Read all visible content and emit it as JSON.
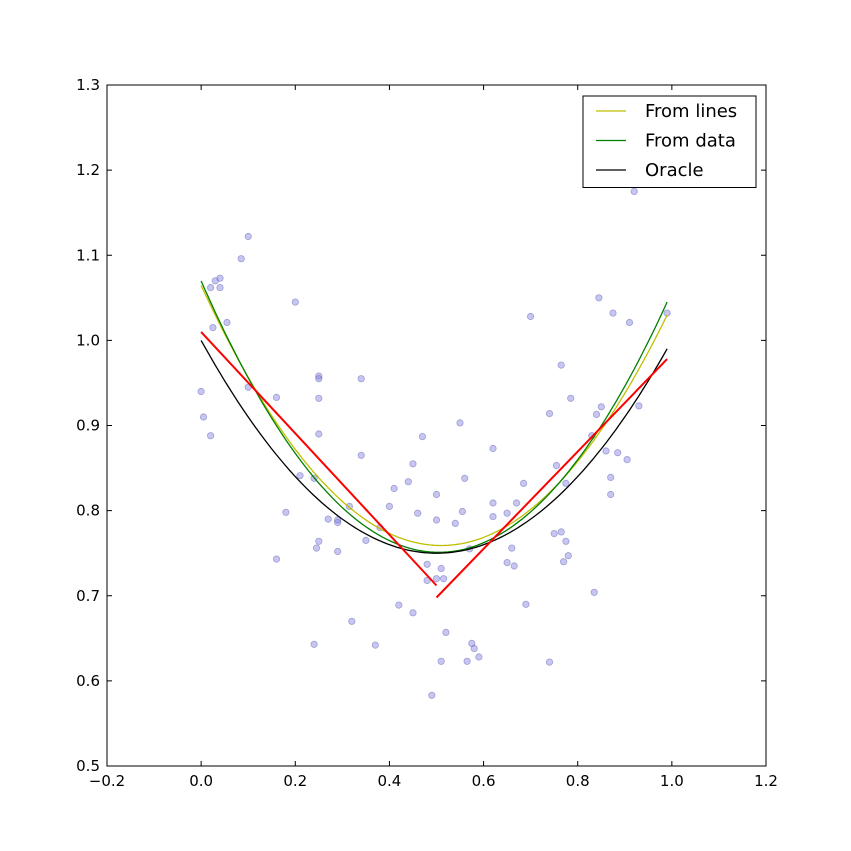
{
  "chart_data": {
    "type": "scatter",
    "xlim": [
      -0.2,
      1.2
    ],
    "ylim": [
      0.5,
      1.3
    ],
    "xticks": [
      "−0.2",
      "0.0",
      "0.2",
      "0.4",
      "0.6",
      "0.8",
      "1.0",
      "1.2"
    ],
    "yticks": [
      "0.5",
      "0.6",
      "0.7",
      "0.8",
      "0.9",
      "1.0",
      "1.1",
      "1.2",
      "1.3"
    ],
    "grid": false,
    "legend": {
      "position": "top-right",
      "entries": [
        {
          "label": "From lines",
          "color": "#bfbf00"
        },
        {
          "label": "From data",
          "color": "#008000"
        },
        {
          "label": "Oracle",
          "color": "#000000"
        }
      ]
    },
    "scatter": {
      "color": "#8080e0",
      "points": [
        [
          0.0,
          0.94
        ],
        [
          0.005,
          0.91
        ],
        [
          0.02,
          0.888
        ],
        [
          0.02,
          1.062
        ],
        [
          0.025,
          1.015
        ],
        [
          0.03,
          1.07
        ],
        [
          0.04,
          1.073
        ],
        [
          0.04,
          1.062
        ],
        [
          0.055,
          1.021
        ],
        [
          0.085,
          1.096
        ],
        [
          0.1,
          1.122
        ],
        [
          0.1,
          0.945
        ],
        [
          0.16,
          0.743
        ],
        [
          0.16,
          0.933
        ],
        [
          0.18,
          0.798
        ],
        [
          0.2,
          1.045
        ],
        [
          0.21,
          0.841
        ],
        [
          0.24,
          0.838
        ],
        [
          0.24,
          0.643
        ],
        [
          0.245,
          0.756
        ],
        [
          0.25,
          0.958
        ],
        [
          0.25,
          0.955
        ],
        [
          0.25,
          0.932
        ],
        [
          0.25,
          0.89
        ],
        [
          0.25,
          0.764
        ],
        [
          0.27,
          0.79
        ],
        [
          0.29,
          0.752
        ],
        [
          0.29,
          0.786
        ],
        [
          0.29,
          0.789
        ],
        [
          0.315,
          0.805
        ],
        [
          0.32,
          0.67
        ],
        [
          0.34,
          0.955
        ],
        [
          0.34,
          0.865
        ],
        [
          0.35,
          0.765
        ],
        [
          0.37,
          0.642
        ],
        [
          0.38,
          0.78
        ],
        [
          0.4,
          0.805
        ],
        [
          0.41,
          0.826
        ],
        [
          0.42,
          0.689
        ],
        [
          0.44,
          0.834
        ],
        [
          0.45,
          0.855
        ],
        [
          0.45,
          0.68
        ],
        [
          0.46,
          0.797
        ],
        [
          0.47,
          0.887
        ],
        [
          0.48,
          0.737
        ],
        [
          0.48,
          0.718
        ],
        [
          0.49,
          0.583
        ],
        [
          0.5,
          0.789
        ],
        [
          0.5,
          0.819
        ],
        [
          0.5,
          0.72
        ],
        [
          0.51,
          0.732
        ],
        [
          0.51,
          0.623
        ],
        [
          0.515,
          0.72
        ],
        [
          0.52,
          0.657
        ],
        [
          0.54,
          0.785
        ],
        [
          0.55,
          0.903
        ],
        [
          0.555,
          0.799
        ],
        [
          0.56,
          0.838
        ],
        [
          0.565,
          0.623
        ],
        [
          0.57,
          0.755
        ],
        [
          0.575,
          0.644
        ],
        [
          0.58,
          0.638
        ],
        [
          0.59,
          0.628
        ],
        [
          0.62,
          0.873
        ],
        [
          0.62,
          0.809
        ],
        [
          0.62,
          0.793
        ],
        [
          0.65,
          0.797
        ],
        [
          0.65,
          0.739
        ],
        [
          0.66,
          0.756
        ],
        [
          0.665,
          0.735
        ],
        [
          0.67,
          0.809
        ],
        [
          0.685,
          0.832
        ],
        [
          0.69,
          0.69
        ],
        [
          0.7,
          1.028
        ],
        [
          0.74,
          0.914
        ],
        [
          0.74,
          0.622
        ],
        [
          0.75,
          0.773
        ],
        [
          0.755,
          0.853
        ],
        [
          0.765,
          0.971
        ],
        [
          0.765,
          0.775
        ],
        [
          0.77,
          0.74
        ],
        [
          0.775,
          0.764
        ],
        [
          0.775,
          0.832
        ],
        [
          0.78,
          0.747
        ],
        [
          0.785,
          0.932
        ],
        [
          0.83,
          0.888
        ],
        [
          0.835,
          0.704
        ],
        [
          0.84,
          0.913
        ],
        [
          0.845,
          1.05
        ],
        [
          0.85,
          0.922
        ],
        [
          0.86,
          0.87
        ],
        [
          0.87,
          0.839
        ],
        [
          0.87,
          0.819
        ],
        [
          0.875,
          1.032
        ],
        [
          0.885,
          0.868
        ],
        [
          0.905,
          0.86
        ],
        [
          0.91,
          1.021
        ],
        [
          0.92,
          1.175
        ],
        [
          0.93,
          0.923
        ],
        [
          0.99,
          1.032
        ]
      ]
    },
    "series": [
      {
        "name": "From lines",
        "color": "#bfbf00",
        "kind": "quadratic",
        "a": 1.175,
        "vertex_x": 0.51,
        "vertex_y": 0.759,
        "x_range": [
          0.0,
          0.99
        ]
      },
      {
        "name": "From data",
        "color": "#008000",
        "kind": "quadratic",
        "a": 1.25,
        "vertex_x": 0.505,
        "vertex_y": 0.751,
        "x_range": [
          0.0,
          0.99
        ]
      },
      {
        "name": "Oracle",
        "color": "#000000",
        "kind": "quadratic",
        "a": 1.0,
        "vertex_x": 0.5,
        "vertex_y": 0.75,
        "x_range": [
          0.0,
          0.99
        ]
      },
      {
        "color": "#ff0000",
        "kind": "segment",
        "points": [
          [
            0.0,
            1.01
          ],
          [
            0.5,
            0.712
          ]
        ]
      },
      {
        "color": "#ff0000",
        "kind": "segment",
        "points": [
          [
            0.5,
            0.698
          ],
          [
            0.99,
            0.978
          ]
        ]
      }
    ]
  }
}
